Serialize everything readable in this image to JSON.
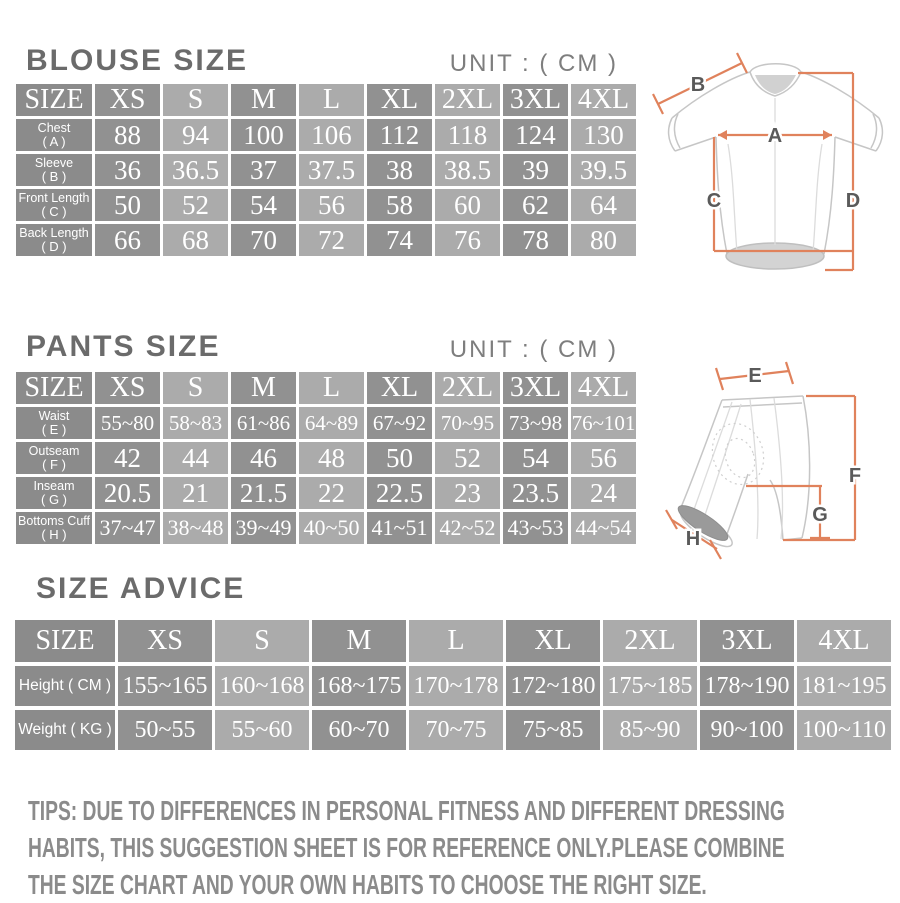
{
  "colors": {
    "background": "#ffffff",
    "cell_dark": "#919191",
    "cell_light": "#ababab",
    "cell_label": "#8b8b8b",
    "cell_text": "#ffffff",
    "heading_text": "#6b6b6b",
    "unit_text": "#7e7e7e",
    "tips_text": "#8b8b8b",
    "diagram_outline": "#c6c6c6",
    "diagram_measure_line": "#e0825c",
    "diagram_label_text": "#5a5a5a"
  },
  "blouse": {
    "title": "BLOUSE SIZE",
    "unit": "UNIT : ( CM )",
    "columns": [
      "SIZE",
      "XS",
      "S",
      "M",
      "L",
      "XL",
      "2XL",
      "3XL",
      "4XL"
    ],
    "rows": [
      {
        "label": "Chest",
        "sub": "( A )",
        "values": [
          "88",
          "94",
          "100",
          "106",
          "112",
          "118",
          "124",
          "130"
        ]
      },
      {
        "label": "Sleeve",
        "sub": "( B )",
        "values": [
          "36",
          "36.5",
          "37",
          "37.5",
          "38",
          "38.5",
          "39",
          "39.5"
        ]
      },
      {
        "label": "Front Length",
        "sub": "( C )",
        "values": [
          "50",
          "52",
          "54",
          "56",
          "58",
          "60",
          "62",
          "64"
        ]
      },
      {
        "label": "Back Length",
        "sub": "( D )",
        "values": [
          "66",
          "68",
          "70",
          "72",
          "74",
          "76",
          "78",
          "80"
        ]
      }
    ],
    "diagram": {
      "a": "A",
      "b": "B",
      "c": "C",
      "d": "D"
    }
  },
  "pants": {
    "title": "PANTS SIZE",
    "unit": "UNIT : ( CM )",
    "columns": [
      "SIZE",
      "XS",
      "S",
      "M",
      "L",
      "XL",
      "2XL",
      "3XL",
      "4XL"
    ],
    "rows": [
      {
        "label": "Waist",
        "sub": "( E )",
        "values": [
          "55~80",
          "58~83",
          "61~86",
          "64~89",
          "67~92",
          "70~95",
          "73~98",
          "76~101"
        ]
      },
      {
        "label": "Outseam",
        "sub": "( F )",
        "values": [
          "42",
          "44",
          "46",
          "48",
          "50",
          "52",
          "54",
          "56"
        ]
      },
      {
        "label": "Inseam",
        "sub": "( G )",
        "values": [
          "20.5",
          "21",
          "21.5",
          "22",
          "22.5",
          "23",
          "23.5",
          "24"
        ]
      },
      {
        "label": "Bottoms Cuff",
        "sub": "( H )",
        "values": [
          "37~47",
          "38~48",
          "39~49",
          "40~50",
          "41~51",
          "42~52",
          "43~53",
          "44~54"
        ]
      }
    ],
    "diagram": {
      "e": "E",
      "f": "F",
      "g": "G",
      "h": "H"
    }
  },
  "advice": {
    "title": "SIZE ADVICE",
    "columns": [
      "SIZE",
      "XS",
      "S",
      "M",
      "L",
      "XL",
      "2XL",
      "3XL",
      "4XL"
    ],
    "rows": [
      {
        "label": "Height ( CM )",
        "values": [
          "155~165",
          "160~168",
          "168~175",
          "170~178",
          "172~180",
          "175~185",
          "178~190",
          "181~195"
        ]
      },
      {
        "label": "Weight ( KG )",
        "values": [
          "50~55",
          "55~60",
          "60~70",
          "70~75",
          "75~85",
          "85~90",
          "90~100",
          "100~110"
        ]
      }
    ]
  },
  "tips": {
    "lines": [
      "TIPS: DUE TO DIFFERENCES IN PERSONAL FITNESS AND DIFFERENT DRESSING",
      "HABITS, THIS SUGGESTION SHEET IS FOR REFERENCE ONLY.PLEASE COMBINE",
      "THE SIZE CHART AND YOUR OWN HABITS TO CHOOSE THE RIGHT SIZE."
    ]
  }
}
